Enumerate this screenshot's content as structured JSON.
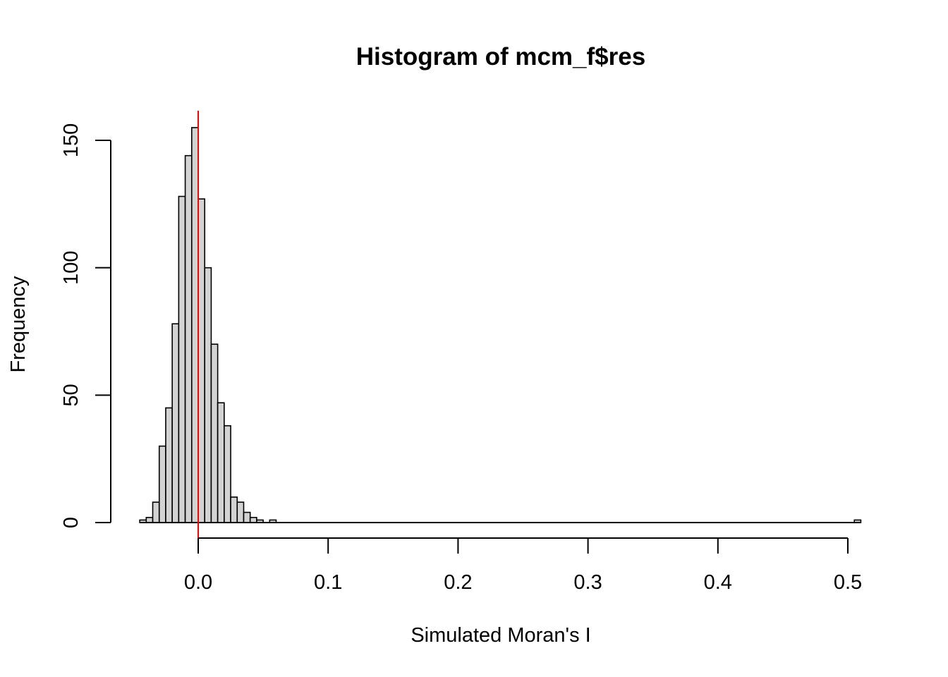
{
  "chart_data": {
    "type": "bar",
    "title": "Histogram of mcm_f$res",
    "xlabel": "Simulated Moran's I",
    "ylabel": "Frequency",
    "bin_width": 0.005,
    "bins": [
      {
        "x0": -0.045,
        "x1": -0.04,
        "count": 1
      },
      {
        "x0": -0.04,
        "x1": -0.035,
        "count": 2
      },
      {
        "x0": -0.035,
        "x1": -0.03,
        "count": 8
      },
      {
        "x0": -0.03,
        "x1": -0.025,
        "count": 30
      },
      {
        "x0": -0.025,
        "x1": -0.02,
        "count": 45
      },
      {
        "x0": -0.02,
        "x1": -0.015,
        "count": 78
      },
      {
        "x0": -0.015,
        "x1": -0.01,
        "count": 128
      },
      {
        "x0": -0.01,
        "x1": -0.005,
        "count": 144
      },
      {
        "x0": -0.005,
        "x1": 0.0,
        "count": 155
      },
      {
        "x0": 0.0,
        "x1": 0.005,
        "count": 127
      },
      {
        "x0": 0.005,
        "x1": 0.01,
        "count": 100
      },
      {
        "x0": 0.01,
        "x1": 0.015,
        "count": 70
      },
      {
        "x0": 0.015,
        "x1": 0.02,
        "count": 47
      },
      {
        "x0": 0.02,
        "x1": 0.025,
        "count": 38
      },
      {
        "x0": 0.025,
        "x1": 0.03,
        "count": 10
      },
      {
        "x0": 0.03,
        "x1": 0.035,
        "count": 8
      },
      {
        "x0": 0.035,
        "x1": 0.04,
        "count": 4
      },
      {
        "x0": 0.04,
        "x1": 0.045,
        "count": 2
      },
      {
        "x0": 0.045,
        "x1": 0.05,
        "count": 1
      },
      {
        "x0": 0.05,
        "x1": 0.055,
        "count": 0
      },
      {
        "x0": 0.055,
        "x1": 0.06,
        "count": 1
      },
      {
        "x0": 0.505,
        "x1": 0.51,
        "count": 1
      }
    ],
    "xlim": [
      -0.045,
      0.51
    ],
    "ylim": [
      0,
      160
    ],
    "x_ticks": [
      0.0,
      0.1,
      0.2,
      0.3,
      0.4,
      0.5
    ],
    "x_tick_labels": [
      "0.0",
      "0.1",
      "0.2",
      "0.3",
      "0.4",
      "0.5"
    ],
    "y_ticks": [
      0,
      50,
      100,
      150
    ],
    "y_tick_labels": [
      "0",
      "50",
      "100",
      "150"
    ],
    "reference_line": {
      "x": 0.0,
      "color": "#ff0000"
    },
    "colors": {
      "bar_fill": "#d3d3d3",
      "bar_stroke": "#000000",
      "reference": "#ff0000",
      "axis": "#000000"
    },
    "grid": false,
    "legend": "none"
  }
}
